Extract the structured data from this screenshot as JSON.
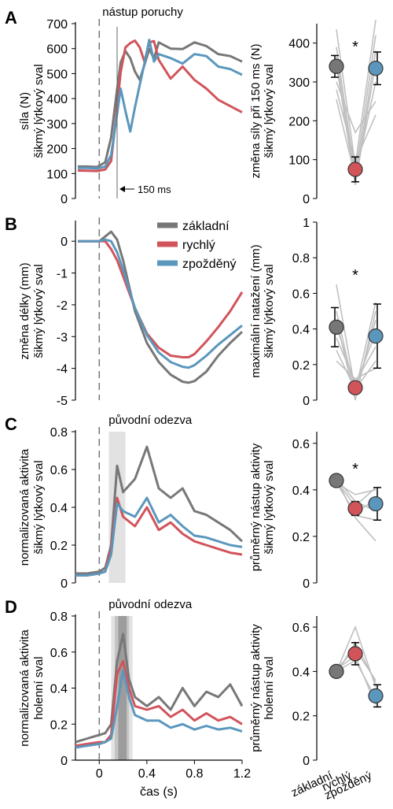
{
  "colors": {
    "zakladni": "#777777",
    "rychly": "#d1545b",
    "zpozdeny": "#5b97bd",
    "gray_line": "#c0c0c0"
  },
  "legend": [
    "základní",
    "rychlý",
    "zpožděný"
  ],
  "chart_data": [
    {
      "panel": "A",
      "type": "line",
      "ylabel": [
        "síla (N)",
        "šikmý lýtkový sval"
      ],
      "ylim": [
        0,
        700
      ],
      "yticks": [
        0,
        100,
        200,
        300,
        400,
        500,
        600,
        700
      ],
      "xlim": [
        -0.2,
        1.2
      ],
      "annotations": [
        "nástup poruchy",
        "150 ms"
      ],
      "series": [
        {
          "name": "základní",
          "x": [
            -0.18,
            -0.1,
            -0.02,
            0.05,
            0.1,
            0.14,
            0.18,
            0.22,
            0.26,
            0.3,
            0.34,
            0.38,
            0.42,
            0.46,
            0.5,
            0.6,
            0.7,
            0.8,
            0.9,
            1.0,
            1.1,
            1.2
          ],
          "y": [
            128,
            128,
            126,
            145,
            245,
            400,
            545,
            590,
            562,
            508,
            475,
            535,
            598,
            560,
            625,
            600,
            598,
            625,
            610,
            578,
            570,
            548
          ]
        },
        {
          "name": "rychlý",
          "x": [
            -0.18,
            -0.1,
            -0.02,
            0.05,
            0.1,
            0.14,
            0.18,
            0.22,
            0.26,
            0.3,
            0.34,
            0.38,
            0.42,
            0.46,
            0.5,
            0.6,
            0.7,
            0.8,
            0.9,
            1.0,
            1.1,
            1.2
          ],
          "y": [
            112,
            111,
            110,
            116,
            150,
            320,
            505,
            605,
            622,
            632,
            605,
            548,
            625,
            630,
            555,
            480,
            528,
            475,
            440,
            395,
            370,
            345
          ]
        },
        {
          "name": "zpožděný",
          "x": [
            -0.18,
            -0.1,
            -0.02,
            0.05,
            0.1,
            0.14,
            0.18,
            0.22,
            0.26,
            0.3,
            0.34,
            0.38,
            0.42,
            0.46,
            0.5,
            0.6,
            0.7,
            0.8,
            0.9,
            1.0,
            1.1,
            1.2
          ],
          "y": [
            122,
            122,
            120,
            128,
            175,
            305,
            440,
            350,
            268,
            365,
            455,
            540,
            635,
            548,
            578,
            562,
            540,
            578,
            570,
            528,
            518,
            495
          ]
        }
      ]
    },
    {
      "panel": "A-summary",
      "type": "scatter",
      "ylabel": [
        "změna síly při 150 ms (N)",
        "šikmý lýtkový sval"
      ],
      "ylim": [
        0,
        450
      ],
      "yticks": [
        0,
        100,
        200,
        300,
        400
      ],
      "categories": [
        "základní",
        "rychlý",
        "zpožděný"
      ],
      "means": [
        340,
        75,
        335
      ],
      "errors": [
        28,
        32,
        42
      ],
      "significance": "*",
      "subjects": [
        [
          435,
          85,
          460
        ],
        [
          390,
          60,
          420
        ],
        [
          365,
          42,
          380
        ],
        [
          345,
          35,
          350
        ],
        [
          300,
          170,
          250
        ],
        [
          280,
          95,
          215
        ],
        [
          255,
          55,
          300
        ]
      ]
    },
    {
      "panel": "B",
      "type": "line",
      "ylabel": [
        "změna délky (mm)",
        "šikmý lýtkový sval"
      ],
      "ylim": [
        -5,
        0.6
      ],
      "yticks": [
        -5,
        -4,
        -3,
        -2,
        -1,
        0
      ],
      "xlim": [
        -0.2,
        1.2
      ],
      "series": [
        {
          "name": "základní",
          "x": [
            -0.18,
            -0.1,
            0.0,
            0.05,
            0.1,
            0.15,
            0.2,
            0.25,
            0.3,
            0.4,
            0.5,
            0.6,
            0.7,
            0.75,
            0.8,
            0.9,
            1.0,
            1.1,
            1.2
          ],
          "y": [
            0,
            0,
            0,
            0.15,
            0.3,
            0.05,
            -0.6,
            -1.4,
            -2.2,
            -3.2,
            -3.8,
            -4.2,
            -4.42,
            -4.45,
            -4.4,
            -4.1,
            -3.6,
            -3.2,
            -2.85
          ]
        },
        {
          "name": "rychlý",
          "x": [
            -0.18,
            -0.1,
            0.0,
            0.05,
            0.1,
            0.15,
            0.2,
            0.25,
            0.3,
            0.4,
            0.5,
            0.6,
            0.7,
            0.75,
            0.8,
            0.9,
            1.0,
            1.1,
            1.2
          ],
          "y": [
            0,
            0,
            0,
            0,
            -0.25,
            -0.6,
            -1.1,
            -1.6,
            -2.1,
            -2.9,
            -3.35,
            -3.6,
            -3.65,
            -3.65,
            -3.55,
            -3.15,
            -2.7,
            -2.2,
            -1.6
          ]
        },
        {
          "name": "zpožděný",
          "x": [
            -0.18,
            -0.1,
            0.0,
            0.05,
            0.1,
            0.15,
            0.2,
            0.25,
            0.3,
            0.4,
            0.5,
            0.6,
            0.7,
            0.75,
            0.8,
            0.9,
            1.0,
            1.1,
            1.2
          ],
          "y": [
            0,
            0,
            0,
            0.05,
            0.0,
            -0.35,
            -0.9,
            -1.5,
            -2.1,
            -2.95,
            -3.5,
            -3.8,
            -3.95,
            -3.98,
            -3.9,
            -3.6,
            -3.25,
            -2.95,
            -2.65
          ]
        }
      ]
    },
    {
      "panel": "B-summary",
      "type": "scatter",
      "ylabel": [
        "maximální natažení (mm)",
        "šikmý lýtkový sval"
      ],
      "ylim": [
        0,
        1.0
      ],
      "yticks": [
        0.0,
        0.2,
        0.4,
        0.6,
        0.8,
        1.0
      ],
      "categories": [
        "základní",
        "rychlý",
        "zpožděný"
      ],
      "means": [
        0.41,
        0.07,
        0.36
      ],
      "errors": [
        0.11,
        0.02,
        0.18
      ],
      "significance": "*",
      "subjects": [
        [
          0.65,
          0.05,
          0.55
        ],
        [
          0.5,
          0.03,
          0.45
        ],
        [
          0.42,
          0.08,
          0.38
        ],
        [
          0.35,
          0.1,
          0.3
        ],
        [
          0.28,
          0.06,
          0.22
        ],
        [
          0.22,
          0.12,
          0.18
        ],
        [
          0.45,
          0.0,
          0.5
        ]
      ]
    },
    {
      "panel": "C",
      "type": "line",
      "ylabel": [
        "normalizovaná aktivita",
        "šikmý lýtkový sval"
      ],
      "ylim": [
        0,
        0.8
      ],
      "yticks": [
        0.0,
        0.2,
        0.4,
        0.6,
        0.8
      ],
      "xlim": [
        -0.2,
        1.2
      ],
      "annotations": [
        "původní odezva"
      ],
      "shading": [
        [
          0.08,
          0.22
        ]
      ],
      "series": [
        {
          "name": "základní",
          "x": [
            -0.2,
            -0.1,
            0.0,
            0.05,
            0.1,
            0.15,
            0.2,
            0.3,
            0.4,
            0.5,
            0.6,
            0.7,
            0.8,
            0.9,
            1.0,
            1.1,
            1.2
          ],
          "y": [
            0.05,
            0.05,
            0.06,
            0.08,
            0.2,
            0.62,
            0.48,
            0.55,
            0.72,
            0.5,
            0.45,
            0.5,
            0.38,
            0.36,
            0.32,
            0.28,
            0.22
          ]
        },
        {
          "name": "rychlý",
          "x": [
            -0.2,
            -0.1,
            0.0,
            0.05,
            0.1,
            0.15,
            0.2,
            0.3,
            0.4,
            0.5,
            0.6,
            0.7,
            0.8,
            0.9,
            1.0,
            1.1,
            1.2
          ],
          "y": [
            0.04,
            0.04,
            0.05,
            0.06,
            0.18,
            0.45,
            0.35,
            0.3,
            0.4,
            0.28,
            0.32,
            0.26,
            0.22,
            0.2,
            0.18,
            0.16,
            0.15
          ]
        },
        {
          "name": "zpožděný",
          "x": [
            -0.2,
            -0.1,
            0.0,
            0.05,
            0.1,
            0.15,
            0.2,
            0.3,
            0.4,
            0.5,
            0.6,
            0.7,
            0.8,
            0.9,
            1.0,
            1.1,
            1.2
          ],
          "y": [
            0.04,
            0.04,
            0.05,
            0.06,
            0.15,
            0.42,
            0.38,
            0.35,
            0.45,
            0.32,
            0.36,
            0.3,
            0.25,
            0.24,
            0.22,
            0.2,
            0.19
          ]
        }
      ]
    },
    {
      "panel": "C-summary",
      "type": "scatter",
      "ylabel": [
        "průměrný nástup aktivity",
        "šikmý lýtkový sval"
      ],
      "ylim": [
        0,
        0.65
      ],
      "yticks": [
        0.0,
        0.2,
        0.4,
        0.6
      ],
      "categories": [
        "základní",
        "rychlý",
        "zpožděný"
      ],
      "means": [
        0.44,
        0.32,
        0.34
      ],
      "errors": [
        0.02,
        0.03,
        0.07
      ],
      "significance": "*",
      "subjects": [
        [
          0.44,
          0.33,
          0.41
        ],
        [
          0.43,
          0.3,
          0.36
        ],
        [
          0.45,
          0.35,
          0.31
        ],
        [
          0.44,
          0.29,
          0.27
        ],
        [
          0.43,
          0.38,
          0.4
        ],
        [
          0.45,
          0.28,
          0.18
        ]
      ]
    },
    {
      "panel": "D",
      "type": "line",
      "ylabel": [
        "normalizovaná aktivita",
        "holenní sval"
      ],
      "ylim": [
        0,
        0.8
      ],
      "yticks": [
        0.0,
        0.2,
        0.4,
        0.6,
        0.8
      ],
      "xlim": [
        -0.2,
        1.2
      ],
      "xticks": [
        0.0,
        0.4,
        0.8,
        1.2
      ],
      "xlabel": "čas (s)",
      "annotations": [
        "původní odezva"
      ],
      "shading": [
        [
          0.1,
          0.28
        ],
        [
          0.13,
          0.25
        ],
        [
          0.16,
          0.23
        ]
      ],
      "series": [
        {
          "name": "základní",
          "x": [
            -0.2,
            -0.1,
            0.0,
            0.05,
            0.1,
            0.15,
            0.2,
            0.25,
            0.3,
            0.4,
            0.5,
            0.6,
            0.7,
            0.8,
            0.9,
            1.0,
            1.1,
            1.2
          ],
          "y": [
            0.1,
            0.12,
            0.14,
            0.15,
            0.2,
            0.55,
            0.7,
            0.45,
            0.35,
            0.3,
            0.35,
            0.28,
            0.4,
            0.3,
            0.38,
            0.35,
            0.42,
            0.3
          ]
        },
        {
          "name": "rychlý",
          "x": [
            -0.2,
            -0.1,
            0.0,
            0.05,
            0.1,
            0.15,
            0.2,
            0.25,
            0.3,
            0.4,
            0.5,
            0.6,
            0.7,
            0.8,
            0.9,
            1.0,
            1.1,
            1.2
          ],
          "y": [
            0.08,
            0.09,
            0.1,
            0.1,
            0.14,
            0.48,
            0.55,
            0.4,
            0.3,
            0.28,
            0.3,
            0.24,
            0.28,
            0.22,
            0.26,
            0.22,
            0.24,
            0.2
          ]
        },
        {
          "name": "zpožděný",
          "x": [
            -0.2,
            -0.1,
            0.0,
            0.05,
            0.1,
            0.15,
            0.2,
            0.25,
            0.3,
            0.4,
            0.5,
            0.6,
            0.7,
            0.8,
            0.9,
            1.0,
            1.1,
            1.2
          ],
          "y": [
            0.07,
            0.08,
            0.09,
            0.1,
            0.12,
            0.3,
            0.5,
            0.35,
            0.25,
            0.22,
            0.22,
            0.18,
            0.2,
            0.17,
            0.19,
            0.17,
            0.18,
            0.16
          ]
        }
      ]
    },
    {
      "panel": "D-summary",
      "type": "scatter",
      "ylabel": [
        "průměrný nástup aktivity",
        "holenní sval"
      ],
      "ylim": [
        0,
        0.65
      ],
      "yticks": [
        0.0,
        0.2,
        0.4,
        0.6
      ],
      "categories": [
        "základní",
        "rychlý",
        "zpožděný"
      ],
      "xlabels": [
        "základní",
        "rychlý",
        "zpožděný"
      ],
      "means": [
        0.4,
        0.48,
        0.29
      ],
      "errors": [
        0.02,
        0.05,
        0.05
      ],
      "subjects": [
        [
          0.4,
          0.6,
          0.33
        ],
        [
          0.41,
          0.5,
          0.36
        ],
        [
          0.4,
          0.45,
          0.28
        ],
        [
          0.39,
          0.53,
          0.35
        ],
        [
          0.41,
          0.47,
          0.25
        ]
      ]
    }
  ]
}
